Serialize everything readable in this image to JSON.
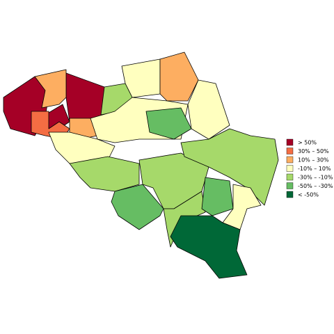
{
  "legend": [
    {
      "label": "> 50%",
      "color": "#a50026"
    },
    {
      "label": "30%  –  50%",
      "color": "#f46d43"
    },
    {
      "label": "10%  –  30%",
      "color": "#fdae61"
    },
    {
      "label": "-10%  –  10%",
      "color": "#ffffbf"
    },
    {
      "label": "-30%  –  -10%",
      "color": "#a6d96a"
    },
    {
      "label": "-50%  –  -30%",
      "color": "#66bd63"
    },
    {
      "label": "< -50%",
      "color": "#006837"
    }
  ]
}
